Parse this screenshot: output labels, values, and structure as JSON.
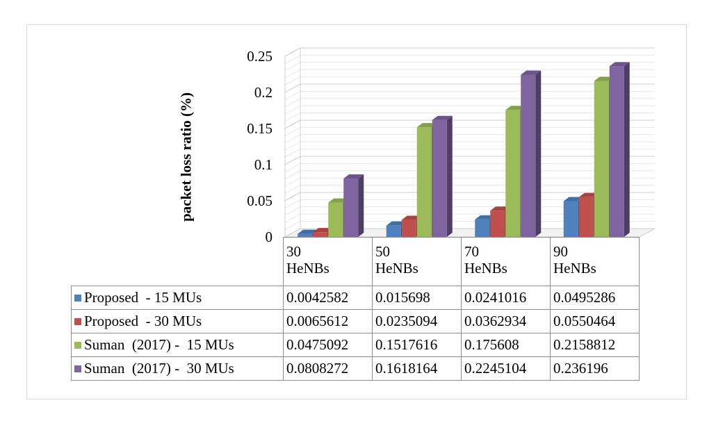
{
  "chart_data": {
    "type": "bar",
    "ylabel": "packet loss ratio (%)",
    "ylim": [
      0,
      0.25
    ],
    "y_ticks": [
      "0",
      "0.05",
      "0.1",
      "0.15",
      "0.2",
      "0.25"
    ],
    "categories": [
      "30 HeNBs",
      "50 HeNBs",
      "70 HeNBs",
      "90 HeNBs"
    ],
    "category_lines": [
      [
        "30",
        "HeNBs"
      ],
      [
        "50",
        "HeNBs"
      ],
      [
        "70",
        "HeNBs"
      ],
      [
        "90",
        "HeNBs"
      ]
    ],
    "grid": true,
    "legend": "table-below",
    "series": [
      {
        "name": "Proposed  - 15 MUs",
        "color": "#4f81bd",
        "values": [
          0.0042582,
          0.015698,
          0.0241016,
          0.0495286
        ],
        "labels": [
          "0.0042582",
          "0.015698",
          "0.0241016",
          "0.0495286"
        ]
      },
      {
        "name": "Proposed  - 30 MUs",
        "color": "#c0504d",
        "values": [
          0.0065612,
          0.0235094,
          0.0362934,
          0.0550464
        ],
        "labels": [
          "0.0065612",
          "0.0235094",
          "0.0362934",
          "0.0550464"
        ]
      },
      {
        "name": "Suman  (2017) -  15 MUs",
        "color": "#9bbb59",
        "values": [
          0.0475092,
          0.1517616,
          0.175608,
          0.2158812
        ],
        "labels": [
          "0.0475092",
          "0.1517616",
          "0.175608",
          "0.2158812"
        ]
      },
      {
        "name": "Suman  (2017) -  30 MUs",
        "color": "#8064a2",
        "values": [
          0.0808272,
          0.1618164,
          0.2245104,
          0.236196
        ],
        "labels": [
          "0.0808272",
          "0.1618164",
          "0.2245104",
          "0.236196"
        ]
      }
    ]
  }
}
